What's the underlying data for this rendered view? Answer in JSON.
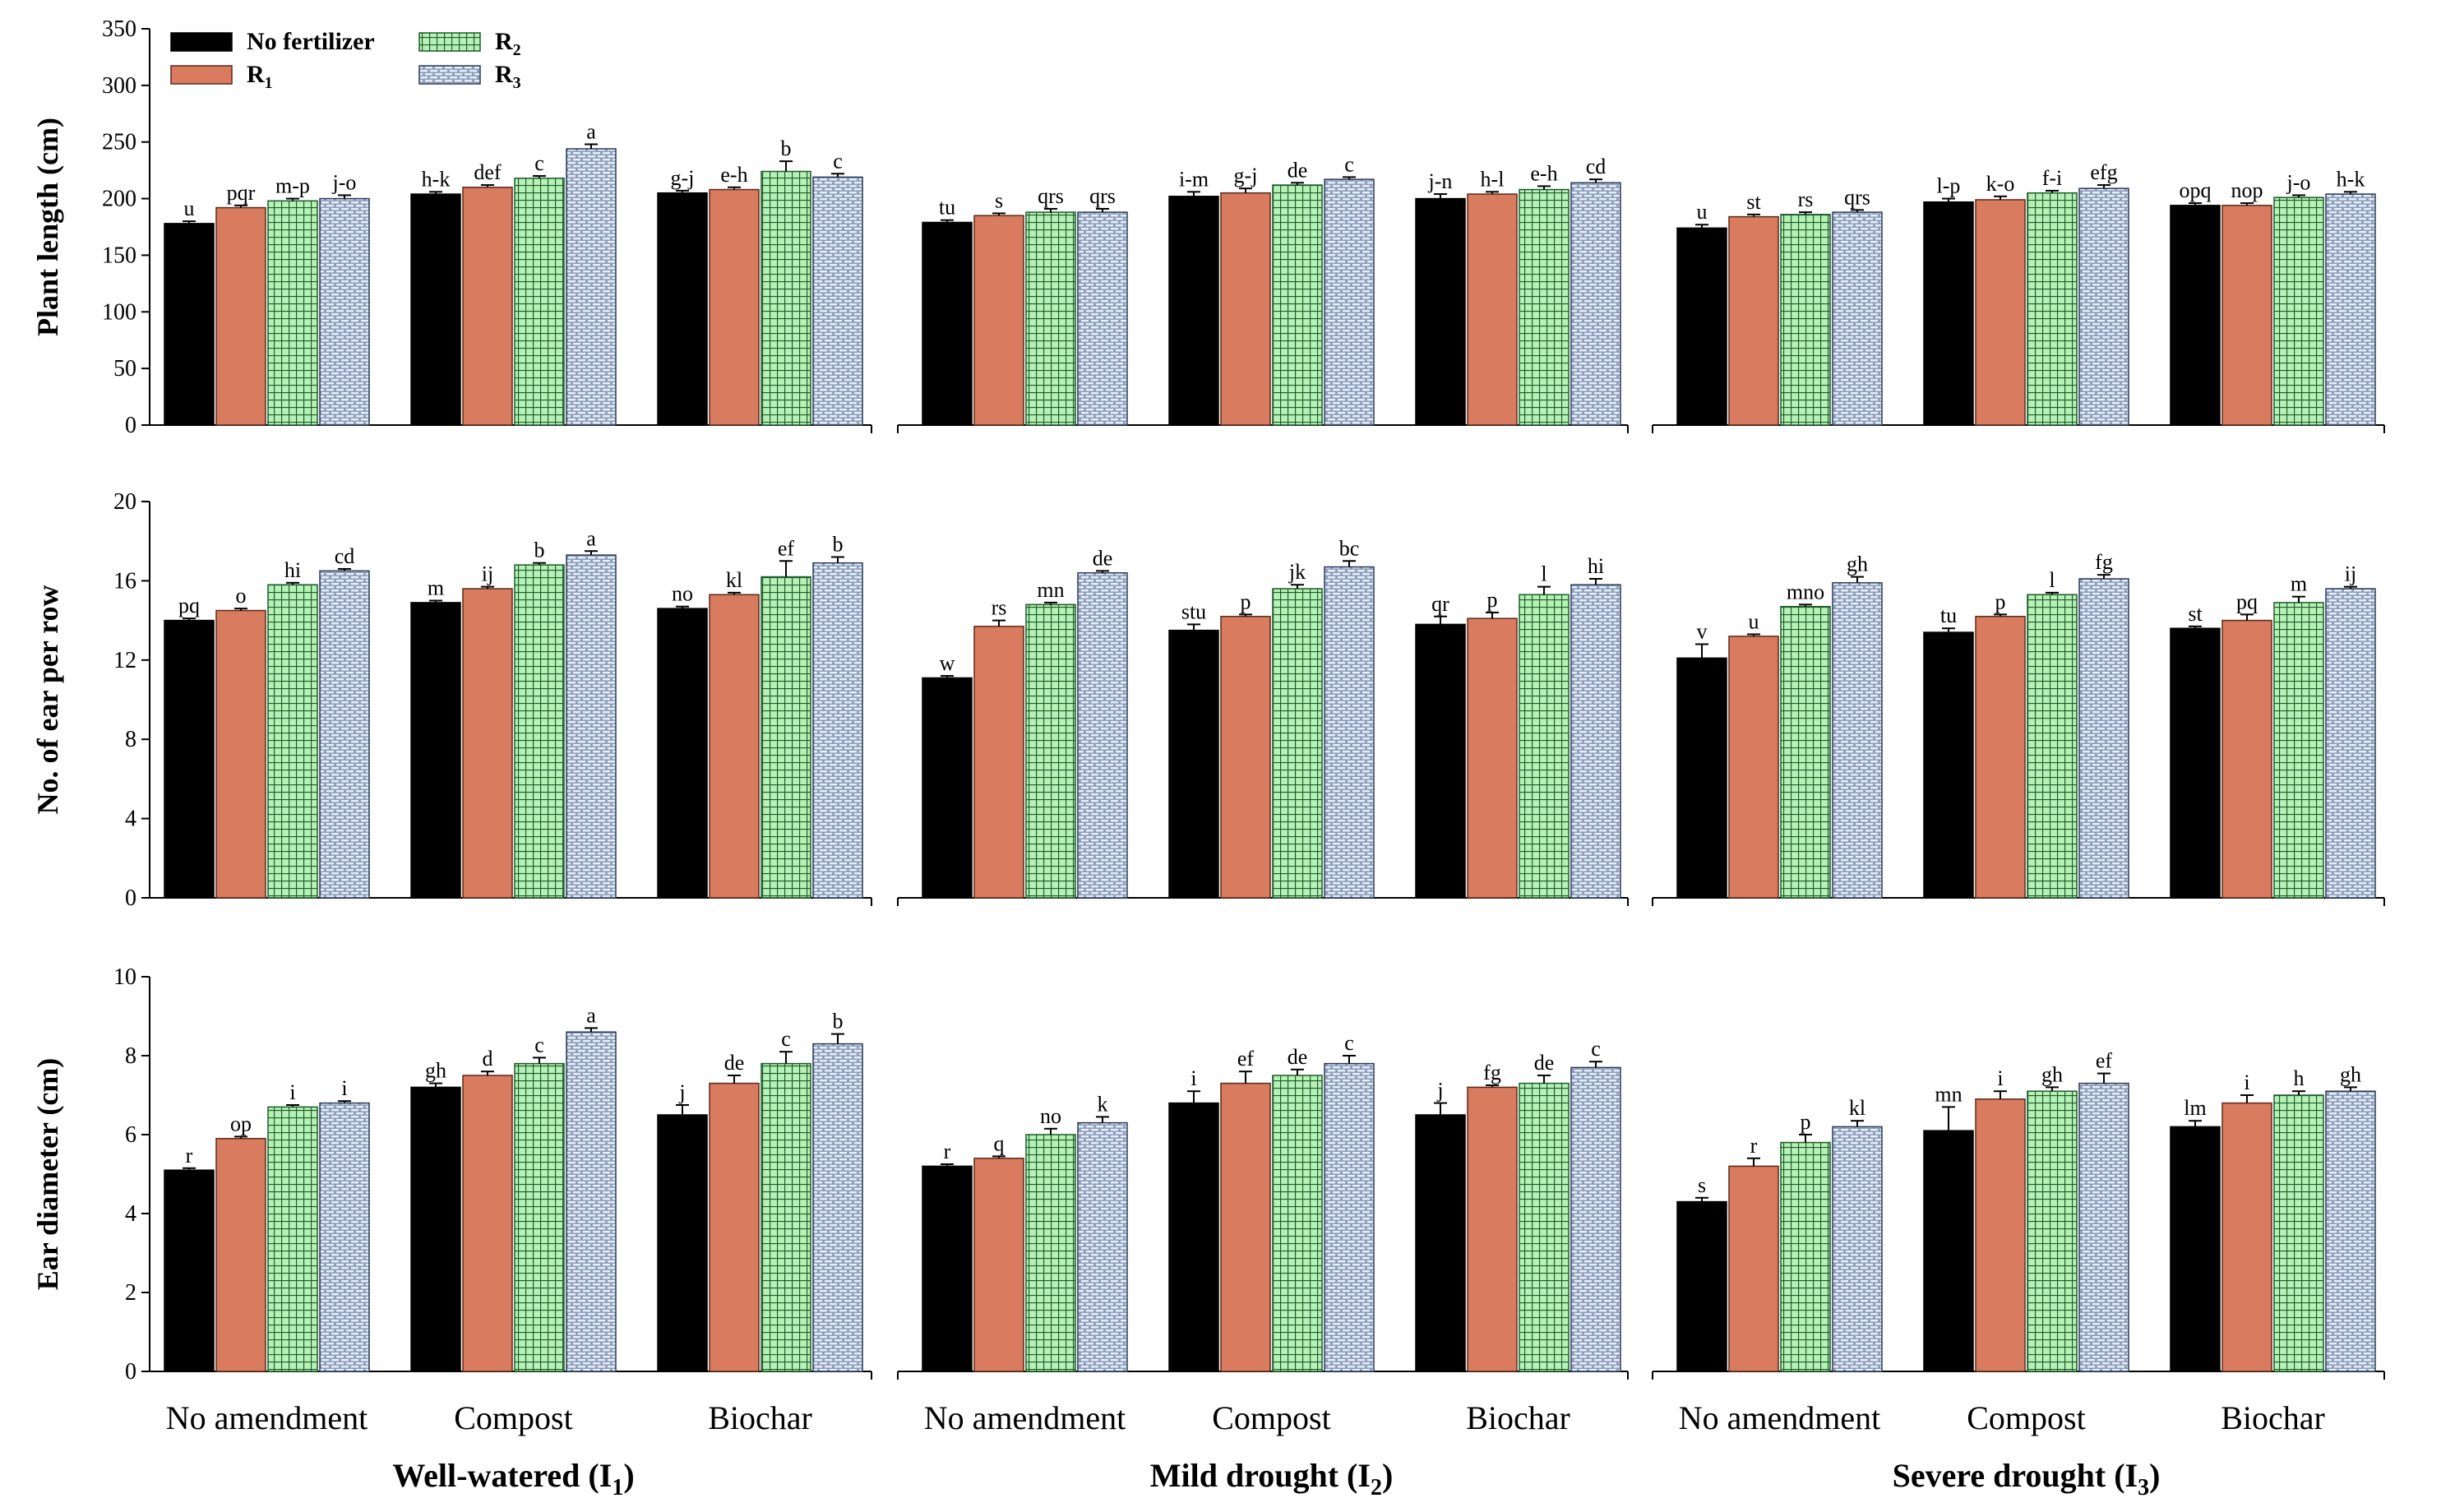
{
  "chart_data": {
    "type": "bar",
    "conditions": [
      {
        "label": "Well-watered (I",
        "sub": "1",
        "close": ")"
      },
      {
        "label": "Mild drought (I",
        "sub": "2",
        "close": ")"
      },
      {
        "label": "Severe drought (I",
        "sub": "3",
        "close": ")"
      }
    ],
    "amendments": [
      "No amendment",
      "Compost",
      "Biochar"
    ],
    "series": [
      {
        "key": "none",
        "label": "No fertilizer",
        "sub": "",
        "color": "#000000"
      },
      {
        "key": "r1",
        "label": "R",
        "sub": "1",
        "color": "#d97b5f"
      },
      {
        "key": "r2",
        "label": "R",
        "sub": "2",
        "color": "#b6f2b6"
      },
      {
        "key": "r3",
        "label": "R",
        "sub": "3",
        "color": "#8ea0bd"
      }
    ],
    "legend_position": "top-left",
    "panels": [
      {
        "ylabel": "Plant length (cm)",
        "ylim": [
          0,
          350
        ],
        "yticks": [
          0,
          50,
          100,
          150,
          200,
          250,
          300,
          350
        ],
        "values": [
          [
            [
              178,
              192,
              198,
              200
            ],
            [
              204,
              210,
              218,
              244
            ],
            [
              205,
              208,
              224,
              219
            ]
          ],
          [
            [
              179,
              185,
              188,
              188
            ],
            [
              202,
              205,
              212,
              217
            ],
            [
              200,
              204,
              208,
              214
            ]
          ],
          [
            [
              174,
              184,
              186,
              188
            ],
            [
              197,
              199,
              205,
              209
            ],
            [
              194,
              194,
              201,
              204
            ]
          ]
        ],
        "errors": [
          [
            [
              2,
              2,
              2,
              3
            ],
            [
              2,
              2,
              2,
              4
            ],
            [
              2,
              2,
              9,
              3
            ]
          ],
          [
            [
              2,
              2,
              3,
              3
            ],
            [
              4,
              4,
              2,
              2
            ],
            [
              4,
              2,
              3,
              3
            ]
          ],
          [
            [
              3,
              2,
              2,
              2
            ],
            [
              3,
              3,
              2,
              3
            ],
            [
              2,
              2,
              2,
              2
            ]
          ]
        ],
        "letters": [
          [
            [
              "u",
              "pqr",
              "m-p",
              "j-o"
            ],
            [
              "h-k",
              "def",
              "c",
              "a"
            ],
            [
              "g-j",
              "e-h",
              "b",
              "c"
            ]
          ],
          [
            [
              "tu",
              "s",
              "qrs",
              "qrs"
            ],
            [
              "i-m",
              "g-j",
              "de",
              "c"
            ],
            [
              "j-n",
              "h-l",
              "e-h",
              "cd"
            ]
          ],
          [
            [
              "u",
              "st",
              "rs",
              "qrs"
            ],
            [
              "l-p",
              "k-o",
              "f-i",
              "efg"
            ],
            [
              "opq",
              "nop",
              "j-o",
              "h-k"
            ]
          ]
        ]
      },
      {
        "ylabel": "No. of ear per row",
        "ylim": [
          0,
          20
        ],
        "yticks": [
          0,
          4,
          8,
          12,
          16,
          20
        ],
        "values": [
          [
            [
              14.0,
              14.5,
              15.8,
              16.5
            ],
            [
              14.9,
              15.6,
              16.8,
              17.3
            ],
            [
              14.6,
              15.3,
              16.2,
              16.9
            ]
          ],
          [
            [
              11.1,
              13.7,
              14.8,
              16.4
            ],
            [
              13.5,
              14.2,
              15.6,
              16.7
            ],
            [
              13.8,
              14.1,
              15.3,
              15.8
            ]
          ],
          [
            [
              12.1,
              13.2,
              14.7,
              15.9
            ],
            [
              13.4,
              14.2,
              15.3,
              16.1
            ],
            [
              13.6,
              14.0,
              14.9,
              15.6
            ]
          ]
        ],
        "errors": [
          [
            [
              0.1,
              0.1,
              0.1,
              0.1
            ],
            [
              0.1,
              0.1,
              0.1,
              0.2
            ],
            [
              0.1,
              0.1,
              0.8,
              0.3
            ]
          ],
          [
            [
              0.1,
              0.3,
              0.1,
              0.1
            ],
            [
              0.3,
              0.1,
              0.2,
              0.3
            ],
            [
              0.4,
              0.3,
              0.4,
              0.3
            ]
          ],
          [
            [
              0.7,
              0.1,
              0.1,
              0.3
            ],
            [
              0.2,
              0.1,
              0.1,
              0.2
            ],
            [
              0.1,
              0.3,
              0.3,
              0.1
            ]
          ]
        ],
        "letters": [
          [
            [
              "pq",
              "o",
              "hi",
              "cd"
            ],
            [
              "m",
              "ij",
              "b",
              "a"
            ],
            [
              "no",
              "kl",
              "ef",
              "b"
            ]
          ],
          [
            [
              "w",
              "rs",
              "mn",
              "de"
            ],
            [
              "stu",
              "p",
              "jk",
              "bc"
            ],
            [
              "qr",
              "p",
              "l",
              "hi"
            ]
          ],
          [
            [
              "v",
              "u",
              "mno",
              "gh"
            ],
            [
              "tu",
              "p",
              "l",
              "fg"
            ],
            [
              "st",
              "pq",
              "m",
              "ij"
            ]
          ]
        ]
      },
      {
        "ylabel": "Ear diameter (cm)",
        "ylim": [
          0,
          10
        ],
        "yticks": [
          0,
          2,
          4,
          6,
          8,
          10
        ],
        "values": [
          [
            [
              5.1,
              5.9,
              6.7,
              6.8
            ],
            [
              7.2,
              7.5,
              7.8,
              8.6
            ],
            [
              6.5,
              7.3,
              7.8,
              8.3
            ]
          ],
          [
            [
              5.2,
              5.4,
              6.0,
              6.3
            ],
            [
              6.8,
              7.3,
              7.5,
              7.8
            ],
            [
              6.5,
              7.2,
              7.3,
              7.7
            ]
          ],
          [
            [
              4.3,
              5.2,
              5.8,
              6.2
            ],
            [
              6.1,
              6.9,
              7.1,
              7.3
            ],
            [
              6.2,
              6.8,
              7.0,
              7.1
            ]
          ]
        ],
        "errors": [
          [
            [
              0.05,
              0.05,
              0.05,
              0.05
            ],
            [
              0.1,
              0.1,
              0.15,
              0.1
            ],
            [
              0.25,
              0.2,
              0.3,
              0.25
            ]
          ],
          [
            [
              0.05,
              0.05,
              0.15,
              0.15
            ],
            [
              0.3,
              0.3,
              0.15,
              0.2
            ],
            [
              0.3,
              0.05,
              0.2,
              0.15
            ]
          ],
          [
            [
              0.1,
              0.2,
              0.2,
              0.15
            ],
            [
              0.6,
              0.2,
              0.1,
              0.25
            ],
            [
              0.15,
              0.2,
              0.1,
              0.1
            ]
          ]
        ],
        "letters": [
          [
            [
              "r",
              "op",
              "i",
              "i"
            ],
            [
              "gh",
              "d",
              "c",
              "a"
            ],
            [
              "j",
              "de",
              "c",
              "b"
            ]
          ],
          [
            [
              "r",
              "q",
              "no",
              "k"
            ],
            [
              "i",
              "ef",
              "de",
              "c"
            ],
            [
              "j",
              "fg",
              "de",
              "c"
            ]
          ],
          [
            [
              "s",
              "r",
              "p",
              "kl"
            ],
            [
              "mn",
              "i",
              "gh",
              "ef"
            ],
            [
              "lm",
              "i",
              "h",
              "gh"
            ]
          ]
        ]
      }
    ]
  }
}
